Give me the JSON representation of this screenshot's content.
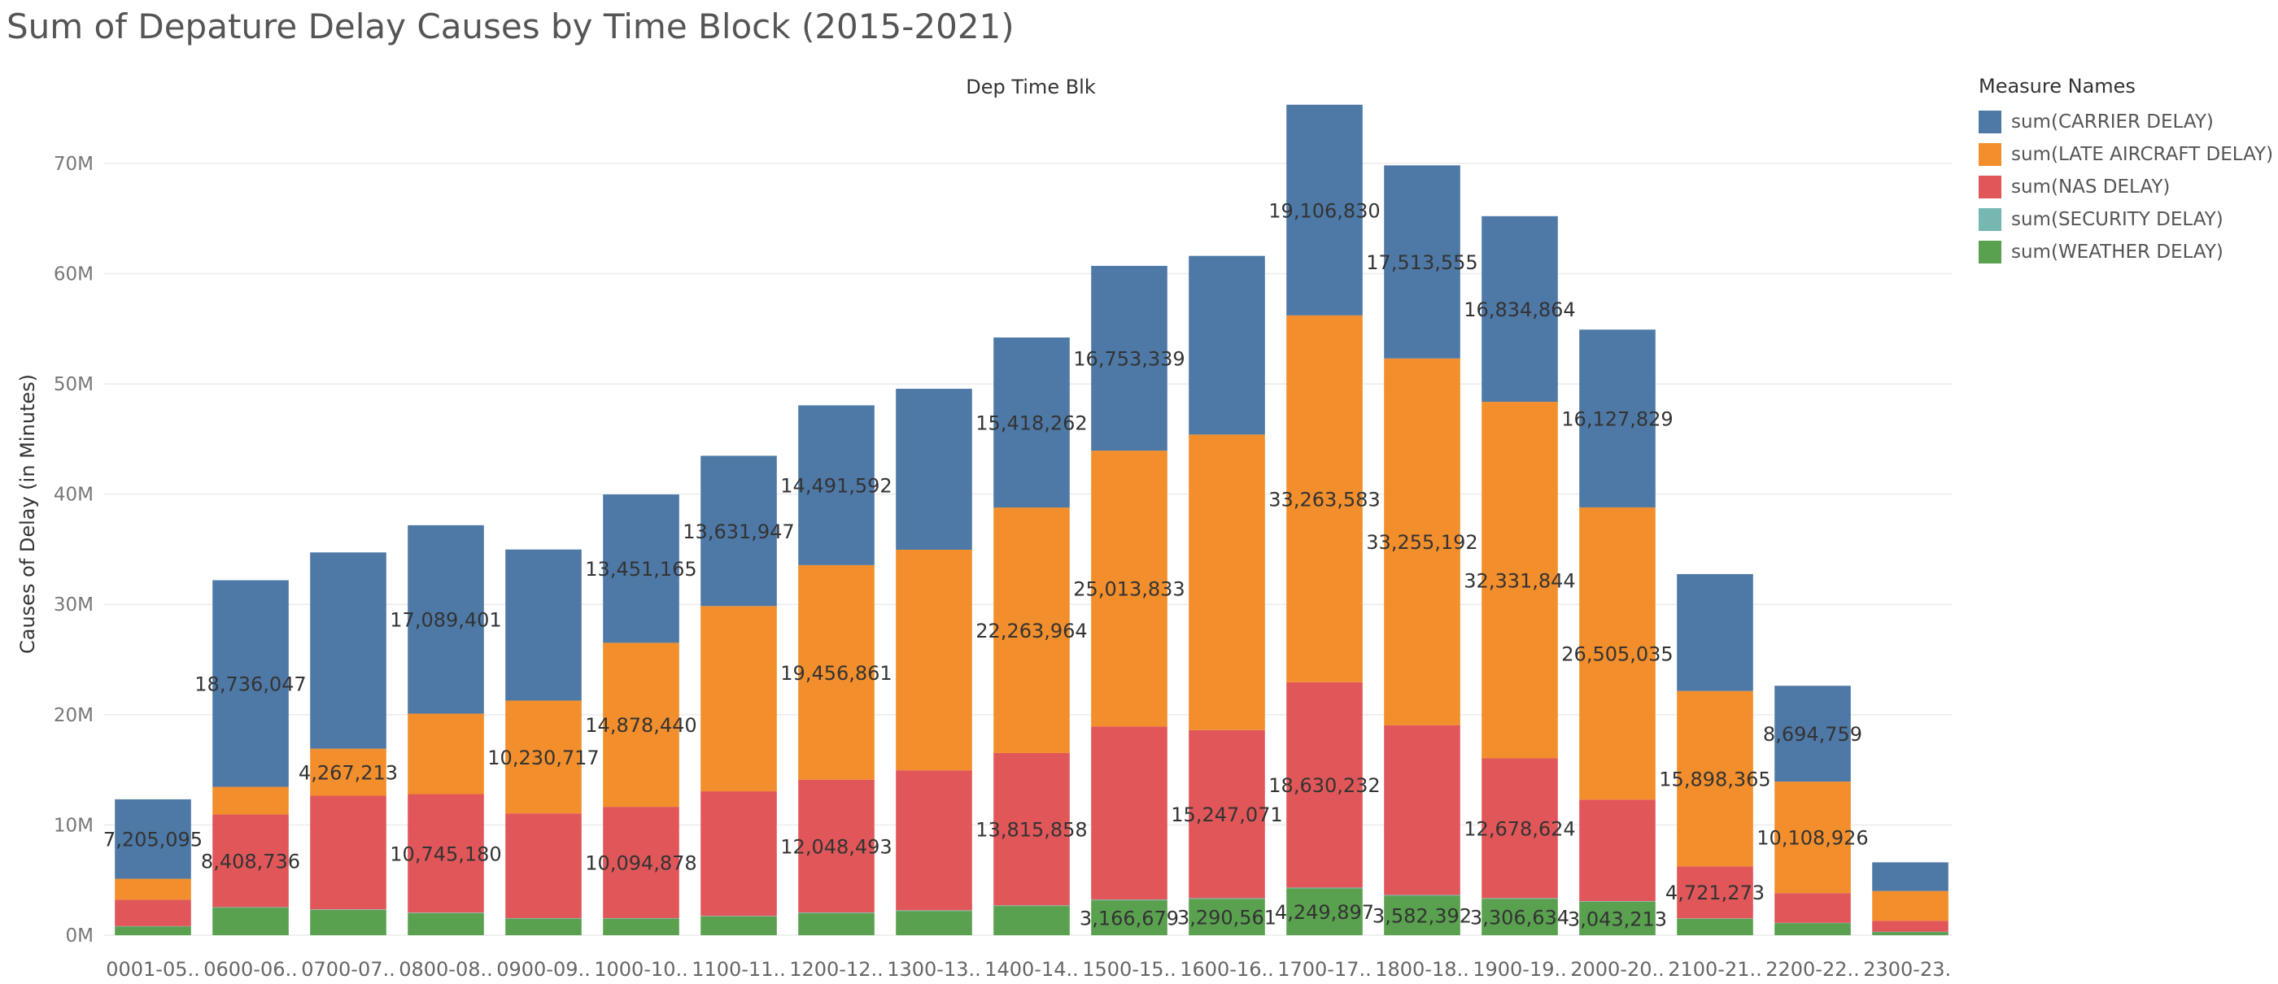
{
  "title": "Sum of Depature Delay Causes by Time Block (2015-2021)",
  "chart_data": {
    "type": "bar",
    "stacked": true,
    "title": "Sum of Depature Delay Causes by Time Block (2015-2021)",
    "column_header": "Dep Time Blk",
    "ylabel": "Causes of Delay (in Minutes)",
    "xlabel": "",
    "ylim": [
      0,
      77
    ],
    "y_unit": "millions of minutes",
    "yticks": [
      {
        "value": 0,
        "label": "0M"
      },
      {
        "value": 10,
        "label": "10M"
      },
      {
        "value": 20,
        "label": "20M"
      },
      {
        "value": 30,
        "label": "30M"
      },
      {
        "value": 40,
        "label": "40M"
      },
      {
        "value": 50,
        "label": "50M"
      },
      {
        "value": 60,
        "label": "60M"
      },
      {
        "value": 70,
        "label": "70M"
      }
    ],
    "grid": true,
    "legend_position": "right",
    "legend_title": "Measure Names",
    "categories": [
      "0001-05..",
      "0600-06..",
      "0700-07..",
      "0800-08..",
      "0900-09..",
      "1000-10..",
      "1100-11..",
      "1200-12..",
      "1300-13..",
      "1400-14..",
      "1500-15..",
      "1600-16..",
      "1700-17..",
      "1800-18..",
      "1900-19..",
      "2000-20..",
      "2100-21..",
      "2200-22..",
      "2300-23.."
    ],
    "series": [
      {
        "name": "sum(WEATHER DELAY)",
        "color": "#59a14f",
        "values": [
          0.8,
          2.5,
          2.3,
          2.0,
          1.5,
          1.5,
          1.7,
          2.0,
          2.2,
          2.65,
          3.166679,
          3.290561,
          4.249897,
          3.582392,
          3.306634,
          3.043213,
          1.5,
          1.1,
          0.3
        ],
        "labels": [
          "",
          "",
          "",
          "",
          "",
          "",
          "",
          "",
          "",
          "",
          "3,166,679",
          "3,290,561",
          "4,249,897",
          "3,582,392",
          "3,306,634",
          "3,043,213",
          "",
          "",
          ""
        ]
      },
      {
        "name": "sum(SECURITY DELAY)",
        "color": "#76b7b2",
        "values": [
          0.02,
          0.05,
          0.05,
          0.05,
          0.05,
          0.05,
          0.05,
          0.06,
          0.06,
          0.06,
          0.07,
          0.07,
          0.07,
          0.07,
          0.06,
          0.05,
          0.03,
          0.02,
          0.01
        ],
        "labels": [
          "",
          "",
          "",
          "",
          "",
          "",
          "",
          "",
          "",
          "",
          "",
          "",
          "",
          "",
          "",
          "",
          "",
          "",
          ""
        ]
      },
      {
        "name": "sum(NAS DELAY)",
        "color": "#e15759",
        "values": [
          2.4,
          8.408736,
          10.3,
          10.74518,
          9.5,
          10.094878,
          11.3,
          12.048493,
          12.7,
          13.815858,
          15.7,
          15.247071,
          18.630232,
          15.4,
          12.678624,
          9.2,
          4.721273,
          2.7,
          1.0
        ],
        "labels": [
          "",
          "8,408,736",
          "",
          "10,745,180",
          "",
          "10,094,878",
          "",
          "12,048,493",
          "",
          "13,815,858",
          "",
          "15,247,071",
          "18,630,232",
          "",
          "12,678,624",
          "",
          "4,721,273",
          "",
          ""
        ]
      },
      {
        "name": "sum(LATE AIRCRAFT DELAY)",
        "color": "#f28e2b",
        "values": [
          1.9,
          2.5,
          4.267213,
          7.3,
          10.230717,
          14.87844,
          16.8,
          19.456861,
          20.0,
          22.263964,
          25.013833,
          26.8,
          33.263583,
          33.255192,
          32.331844,
          26.505035,
          15.898365,
          10.108926,
          2.7
        ],
        "labels": [
          "",
          "",
          "4,267,213",
          "",
          "10,230,717",
          "14,878,440",
          "",
          "19,456,861",
          "",
          "22,263,964",
          "25,013,833",
          "",
          "33,263,583",
          "33,255,192",
          "32,331,844",
          "26,505,035",
          "15,898,365",
          "10,108,926",
          ""
        ]
      },
      {
        "name": "sum(CARRIER DELAY)",
        "color": "#4e79a7",
        "values": [
          7.205095,
          18.736047,
          17.8,
          17.089401,
          13.7,
          13.451165,
          13.631947,
          14.491592,
          14.6,
          15.418262,
          16.753339,
          16.2,
          19.10683,
          17.513555,
          16.834864,
          16.127829,
          10.6,
          8.694759,
          2.6
        ],
        "labels": [
          "7,205,095",
          "18,736,047",
          "",
          "17,089,401",
          "",
          "13,451,165",
          "13,631,947",
          "14,491,592",
          "",
          "15,418,262",
          "16,753,339",
          "",
          "19,106,830",
          "17,513,555",
          "16,834,864",
          "16,127,829",
          "",
          "8,694,759",
          ""
        ]
      }
    ]
  },
  "legend": {
    "title": "Measure Names",
    "items": [
      {
        "label": "sum(CARRIER DELAY)",
        "color": "#4e79a7"
      },
      {
        "label": "sum(LATE AIRCRAFT DELAY)",
        "color": "#f28e2b"
      },
      {
        "label": "sum(NAS DELAY)",
        "color": "#e15759"
      },
      {
        "label": "sum(SECURITY DELAY)",
        "color": "#76b7b2"
      },
      {
        "label": "sum(WEATHER DELAY)",
        "color": "#59a14f"
      }
    ]
  }
}
